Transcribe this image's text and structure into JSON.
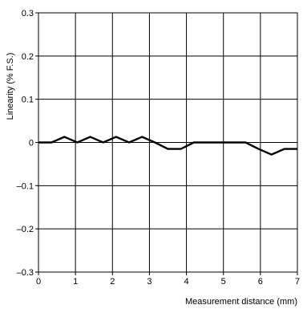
{
  "chart_data": {
    "type": "line",
    "title": "",
    "xlabel": "Measurement distance (mm)",
    "ylabel": "Linearity (% F.S.)",
    "xlim": [
      0,
      7
    ],
    "ylim": [
      -0.3,
      0.3
    ],
    "grid": true,
    "x_ticks": [
      {
        "value": 0,
        "label": "0"
      },
      {
        "value": 1,
        "label": "1"
      },
      {
        "value": 2,
        "label": "2"
      },
      {
        "value": 3,
        "label": "3"
      },
      {
        "value": 4,
        "label": "4"
      },
      {
        "value": 5,
        "label": "5"
      },
      {
        "value": 6,
        "label": "6"
      },
      {
        "value": 7,
        "label": "7"
      }
    ],
    "y_ticks": [
      {
        "value": 0.3,
        "label": "0.3"
      },
      {
        "value": 0.2,
        "label": "0.2"
      },
      {
        "value": 0.1,
        "label": "0.1"
      },
      {
        "value": 0,
        "label": "0"
      },
      {
        "value": -0.1,
        "label": "–0.1"
      },
      {
        "value": -0.2,
        "label": "–0.2"
      },
      {
        "value": -0.3,
        "label": "–0.3"
      }
    ],
    "series": [
      {
        "color": "#000000",
        "x": [
          0,
          0.35,
          0.7,
          1.05,
          1.4,
          1.75,
          2.1,
          2.45,
          2.8,
          3.15,
          3.5,
          3.85,
          4.2,
          4.55,
          4.9,
          5.25,
          5.6,
          5.95,
          6.3,
          6.65,
          7.0
        ],
        "y": [
          0,
          0,
          0.013,
          0,
          0.013,
          0,
          0.013,
          0,
          0.013,
          0,
          -0.015,
          -0.015,
          0,
          0,
          0,
          0,
          0,
          -0.015,
          -0.028,
          -0.015,
          -0.015
        ]
      }
    ]
  }
}
